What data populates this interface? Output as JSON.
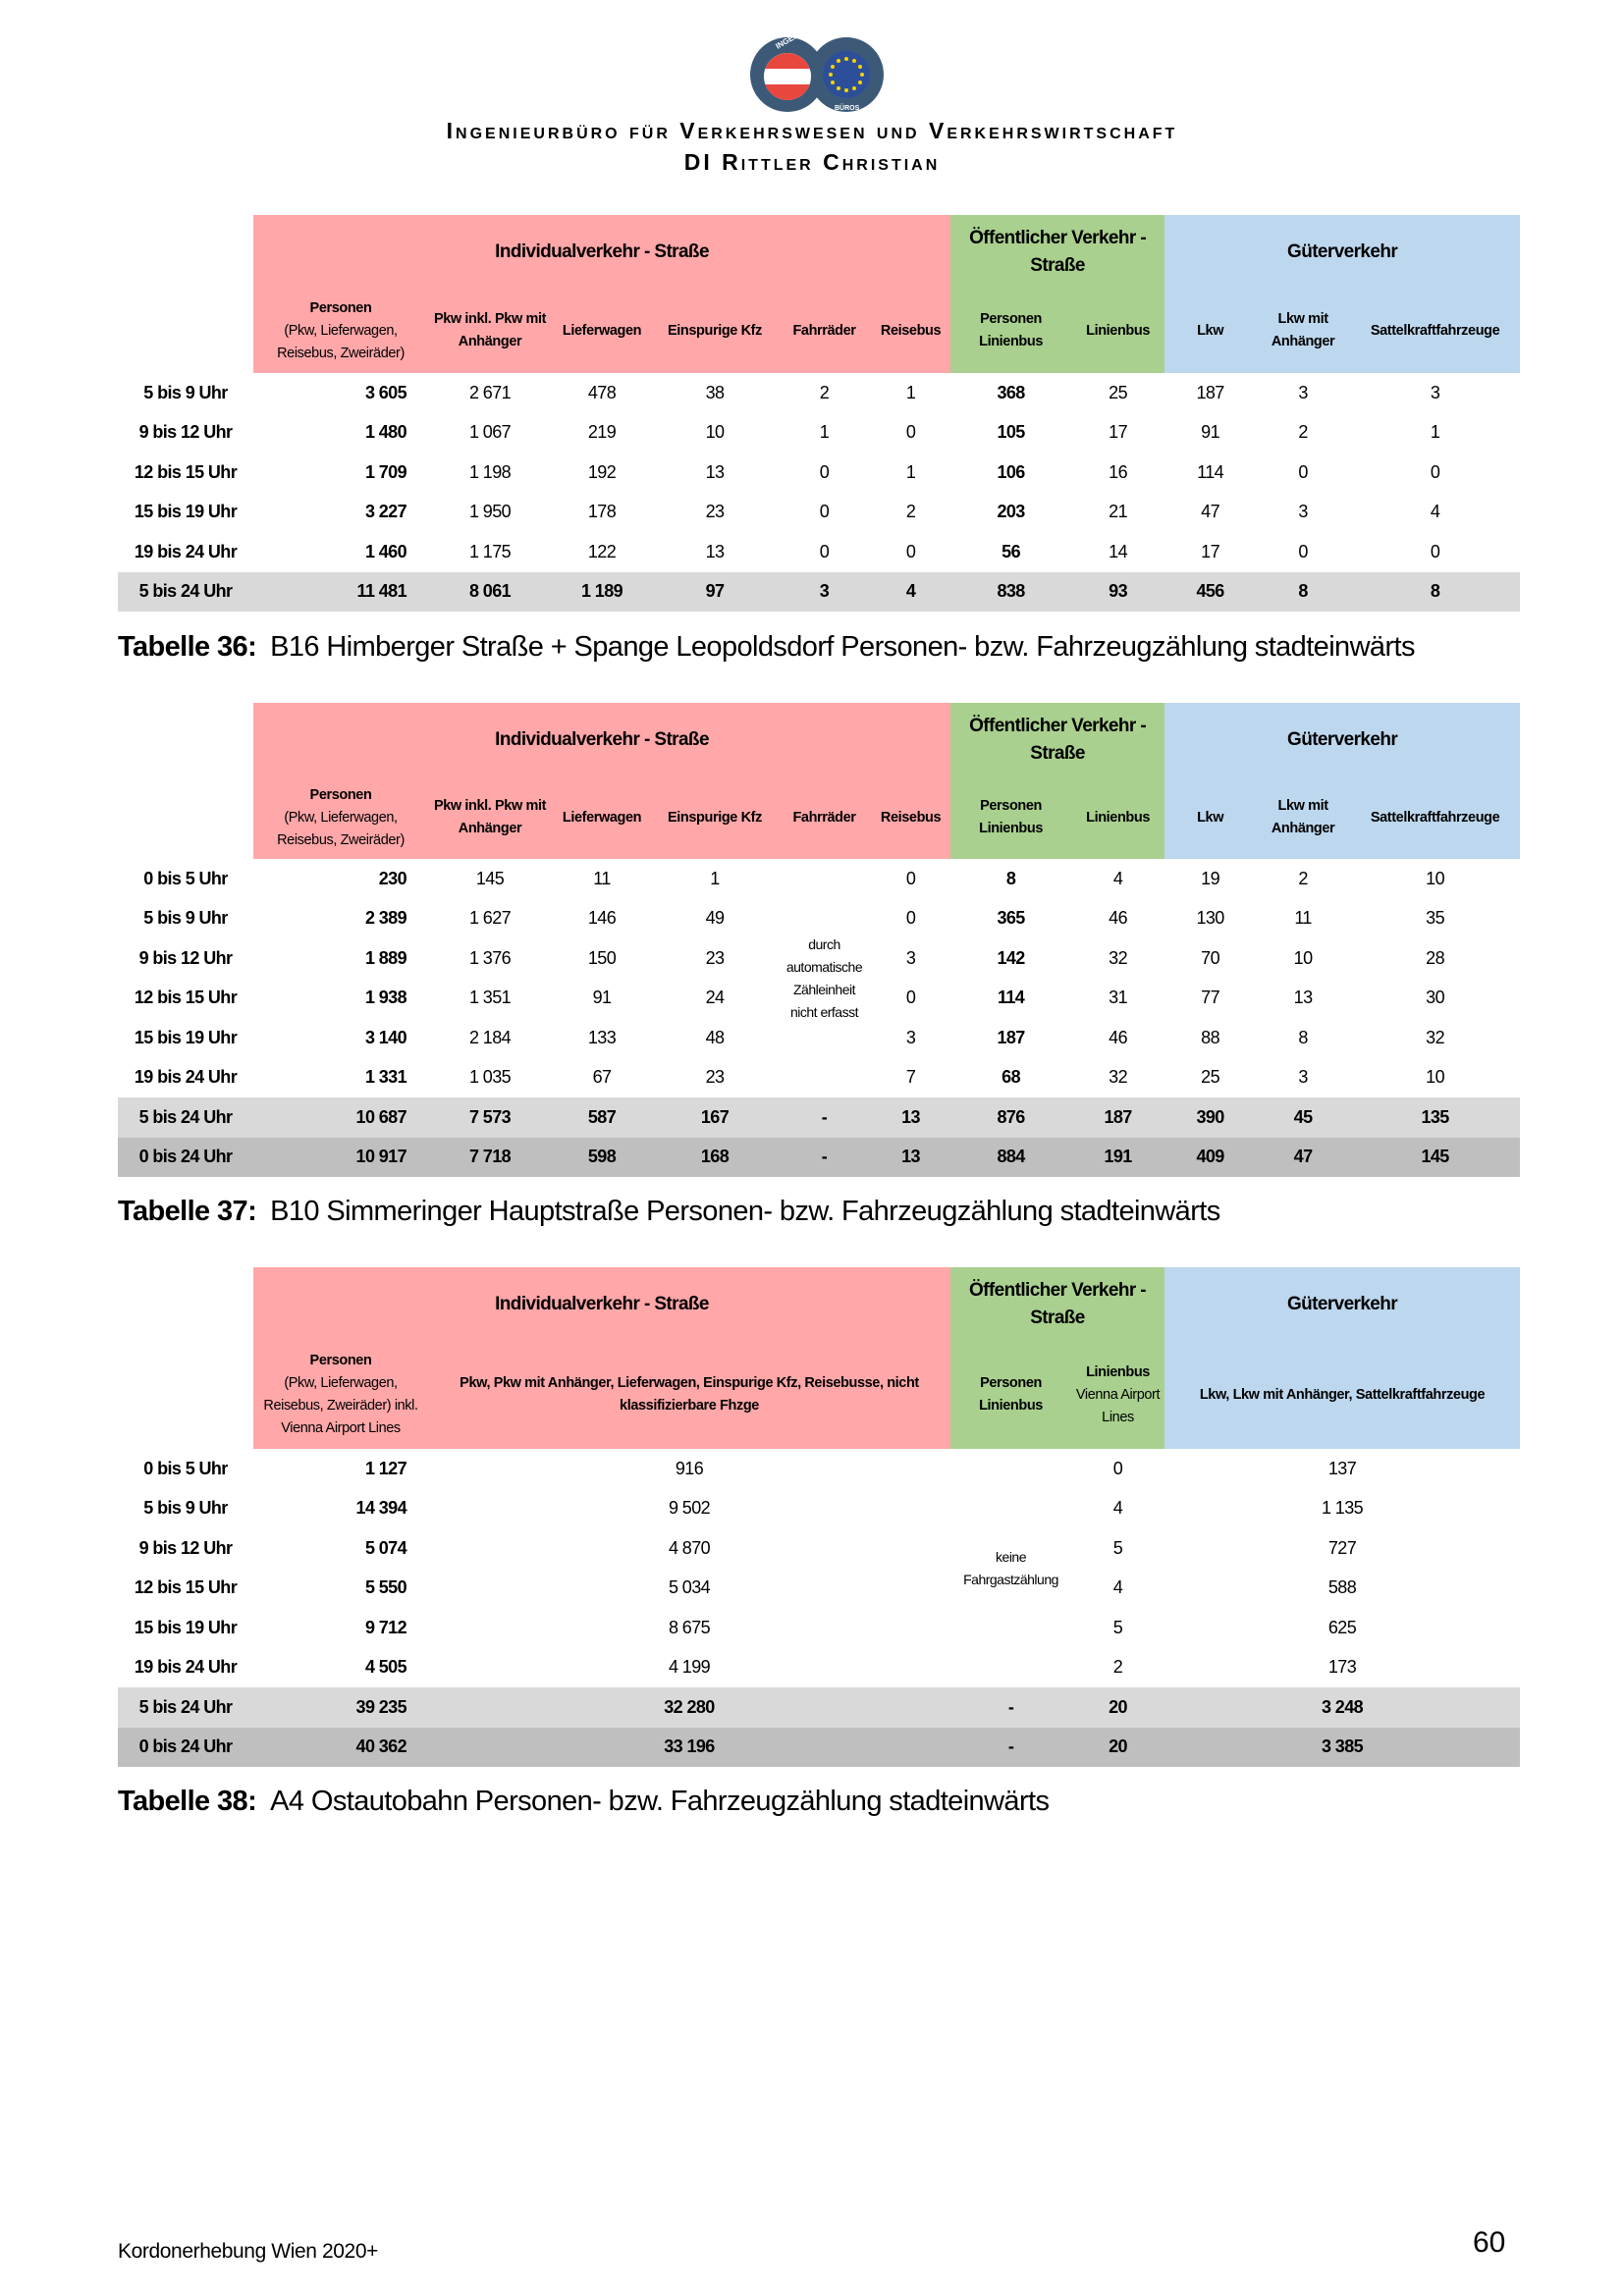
{
  "header": {
    "logo_text_top": "INGENIEUR",
    "logo_text_bottom": "BÜROS",
    "org_line1": "Ingenieurbüro für Verkehrswesen und Verkehrswirtschaft",
    "org_line2": "DI Rittler Christian"
  },
  "colors": {
    "individual": "#ffa7a9",
    "public": "#a9d08e",
    "goods": "#bdd7ee",
    "total_light": "#d9d9d9",
    "total_dark": "#bfbfbf"
  },
  "tables": [
    {
      "caption_label": "Tabelle 36:",
      "caption_text": "B16 Himberger Straße + Spange Leopoldsdorf Personen- bzw. Fahrzeugzählung stadteinwärts",
      "groups": [
        {
          "label": "Individualverkehr - Straße",
          "color": "red",
          "span": 6
        },
        {
          "label": "Öffentlicher Verkehr - Straße",
          "color": "green",
          "span": 2
        },
        {
          "label": "Güterverkehr",
          "color": "blue",
          "span": 3
        }
      ],
      "columns": [
        {
          "label": "Personen",
          "sub": "(Pkw, Lieferwagen, Reisebus, Zweiräder)"
        },
        {
          "label": "Pkw inkl. Pkw mit Anhänger"
        },
        {
          "label": "Lieferwagen"
        },
        {
          "label": "Einspurige Kfz"
        },
        {
          "label": "Fahrräder"
        },
        {
          "label": "Reisebus"
        },
        {
          "label": "Personen Linienbus"
        },
        {
          "label": "Linienbus"
        },
        {
          "label": "Lkw"
        },
        {
          "label": "Lkw mit Anhänger"
        },
        {
          "label": "Sattelkraftfahrzeuge"
        }
      ],
      "rows": [
        {
          "label": "5 bis 9 Uhr",
          "values": [
            "3 605",
            "2 671",
            "478",
            "38",
            "2",
            "1",
            "368",
            "25",
            "187",
            "3",
            "3"
          ]
        },
        {
          "label": "9 bis 12 Uhr",
          "values": [
            "1 480",
            "1 067",
            "219",
            "10",
            "1",
            "0",
            "105",
            "17",
            "91",
            "2",
            "1"
          ]
        },
        {
          "label": "12 bis 15 Uhr",
          "values": [
            "1 709",
            "1 198",
            "192",
            "13",
            "0",
            "1",
            "106",
            "16",
            "114",
            "0",
            "0"
          ]
        },
        {
          "label": "15 bis 19 Uhr",
          "values": [
            "3 227",
            "1 950",
            "178",
            "23",
            "0",
            "2",
            "203",
            "21",
            "47",
            "3",
            "4"
          ]
        },
        {
          "label": "19 bis 24 Uhr",
          "values": [
            "1 460",
            "1 175",
            "122",
            "13",
            "0",
            "0",
            "56",
            "14",
            "17",
            "0",
            "0"
          ]
        },
        {
          "label": "5 bis 24 Uhr",
          "total": 1,
          "values": [
            "11 481",
            "8 061",
            "1 189",
            "97",
            "3",
            "4",
            "838",
            "93",
            "456",
            "8",
            "8"
          ]
        }
      ]
    },
    {
      "caption_label": "Tabelle 37:",
      "caption_text": "B10 Simmeringer Hauptstraße Personen- bzw. Fahrzeugzählung stadteinwärts",
      "groups": [
        {
          "label": "Individualverkehr - Straße",
          "color": "red",
          "span": 6
        },
        {
          "label": "Öffentlicher Verkehr - Straße",
          "color": "green",
          "span": 2
        },
        {
          "label": "Güterverkehr",
          "color": "blue",
          "span": 3
        }
      ],
      "columns": [
        {
          "label": "Personen",
          "sub": "(Pkw, Lieferwagen, Reisebus, Zweiräder)"
        },
        {
          "label": "Pkw inkl. Pkw mit Anhänger"
        },
        {
          "label": "Lieferwagen"
        },
        {
          "label": "Einspurige Kfz"
        },
        {
          "label": "Fahrräder"
        },
        {
          "label": "Reisebus"
        },
        {
          "label": "Personen Linienbus"
        },
        {
          "label": "Linienbus"
        },
        {
          "label": "Lkw"
        },
        {
          "label": "Lkw mit Anhänger"
        },
        {
          "label": "Sattelkraftfahrzeuge"
        }
      ],
      "note": {
        "text": "durch automatische Zähleinheit nicht erfasst"
      },
      "rows": [
        {
          "label": "0 bis 5 Uhr",
          "values": [
            "230",
            "145",
            "11",
            "1",
            null,
            "0",
            "8",
            "4",
            "19",
            "2",
            "10"
          ]
        },
        {
          "label": "5 bis 9 Uhr",
          "values": [
            "2 389",
            "1 627",
            "146",
            "49",
            null,
            "0",
            "365",
            "46",
            "130",
            "11",
            "35"
          ]
        },
        {
          "label": "9 bis 12 Uhr",
          "values": [
            "1 889",
            "1 376",
            "150",
            "23",
            null,
            "3",
            "142",
            "32",
            "70",
            "10",
            "28"
          ]
        },
        {
          "label": "12 bis 15 Uhr",
          "values": [
            "1 938",
            "1 351",
            "91",
            "24",
            null,
            "0",
            "114",
            "31",
            "77",
            "13",
            "30"
          ]
        },
        {
          "label": "15 bis 19 Uhr",
          "values": [
            "3 140",
            "2 184",
            "133",
            "48",
            null,
            "3",
            "187",
            "46",
            "88",
            "8",
            "32"
          ]
        },
        {
          "label": "19 bis 24 Uhr",
          "values": [
            "1 331",
            "1 035",
            "67",
            "23",
            null,
            "7",
            "68",
            "32",
            "25",
            "3",
            "10"
          ]
        },
        {
          "label": "5 bis 24 Uhr",
          "total": 1,
          "values": [
            "10 687",
            "7 573",
            "587",
            "167",
            "-",
            "13",
            "876",
            "187",
            "390",
            "45",
            "135"
          ]
        },
        {
          "label": "0 bis 24 Uhr",
          "total": 2,
          "values": [
            "10 917",
            "7 718",
            "598",
            "168",
            "-",
            "13",
            "884",
            "191",
            "409",
            "47",
            "145"
          ]
        }
      ]
    },
    {
      "caption_label": "Tabelle 38:",
      "caption_text": "A4 Ostautobahn Personen- bzw. Fahrzeugzählung stadteinwärts",
      "groups": [
        {
          "label": "Individualverkehr - Straße",
          "color": "red",
          "span": 2
        },
        {
          "label": "Öffentlicher Verkehr - Straße",
          "color": "green",
          "span": 2
        },
        {
          "label": "Güterverkehr",
          "color": "blue",
          "span": 1
        }
      ],
      "columns": [
        {
          "label": "Personen",
          "sub": "(Pkw, Lieferwagen, Reisebus, Zweiräder) inkl. Vienna Airport Lines"
        },
        {
          "label": "Pkw, Pkw mit Anhänger, Lieferwagen, Einspurige Kfz, Reisebusse, nicht klassifizierbare Fhzge"
        },
        {
          "label": "Personen Linienbus"
        },
        {
          "label": "Linienbus",
          "sub": "Vienna Airport Lines"
        },
        {
          "label": "Lkw, Lkw mit Anhänger, Sattelkraftfahrzeuge"
        }
      ],
      "note": {
        "text": "keine Fahrgastzählung"
      },
      "rows": [
        {
          "label": "0 bis 5 Uhr",
          "values": [
            "1 127",
            "916",
            null,
            "0",
            "137"
          ]
        },
        {
          "label": "5 bis 9 Uhr",
          "values": [
            "14 394",
            "9 502",
            null,
            "4",
            "1 135"
          ]
        },
        {
          "label": "9 bis 12 Uhr",
          "values": [
            "5 074",
            "4 870",
            null,
            "5",
            "727"
          ]
        },
        {
          "label": "12 bis 15 Uhr",
          "values": [
            "5 550",
            "5 034",
            null,
            "4",
            "588"
          ]
        },
        {
          "label": "15 bis 19 Uhr",
          "values": [
            "9 712",
            "8 675",
            null,
            "5",
            "625"
          ]
        },
        {
          "label": "19 bis 24 Uhr",
          "values": [
            "4 505",
            "4 199",
            null,
            "2",
            "173"
          ]
        },
        {
          "label": "5 bis 24 Uhr",
          "total": 1,
          "values": [
            "39 235",
            "32 280",
            "-",
            "20",
            "3 248"
          ]
        },
        {
          "label": "0 bis 24 Uhr",
          "total": 2,
          "values": [
            "40 362",
            "33 196",
            "-",
            "20",
            "3 385"
          ]
        }
      ]
    }
  ],
  "footer": {
    "document_title": "Kordonerhebung Wien 2020+",
    "page_number": "60"
  }
}
